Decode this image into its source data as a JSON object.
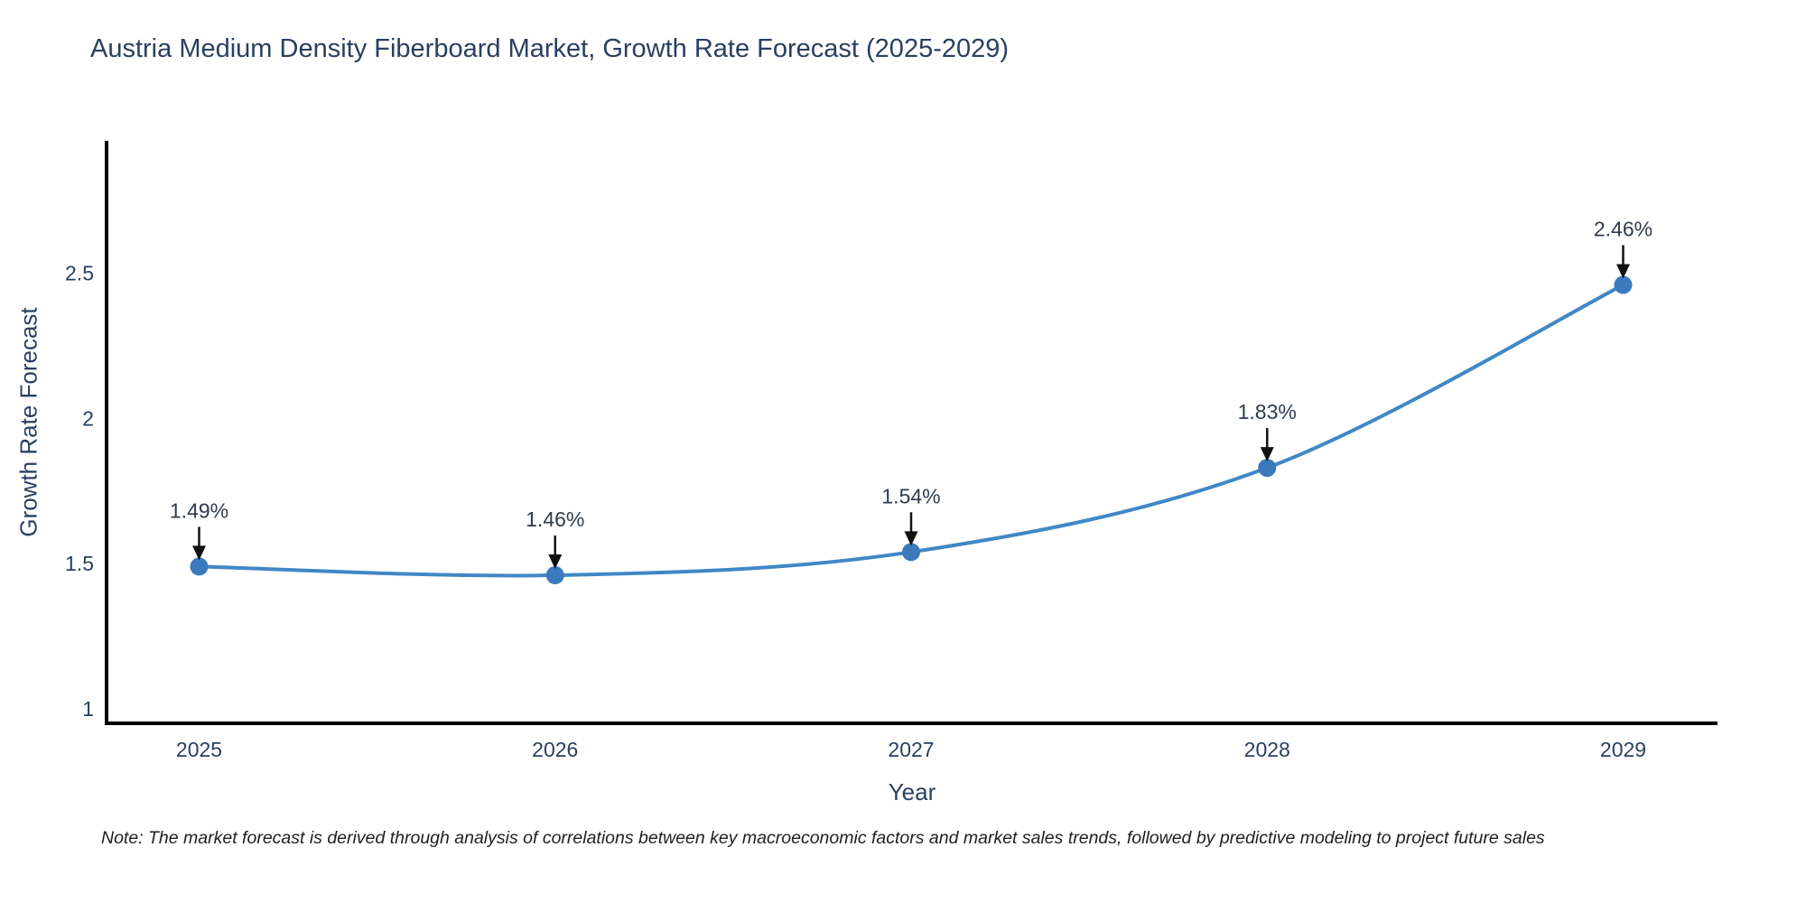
{
  "title": {
    "text": "Austria Medium Density Fiberboard Market, Growth Rate Forecast (2025-2029)"
  },
  "note": {
    "text": "Note: The market forecast is derived through analysis of correlations between key macroeconomic factors and market sales trends, followed by predictive modeling to project future sales"
  },
  "chart_data": {
    "type": "line",
    "title": "Austria Medium Density Fiberboard Market, Growth Rate Forecast (2025-2029)",
    "x": [
      2025,
      2026,
      2027,
      2028,
      2029
    ],
    "x_tick_labels": [
      "2025",
      "2026",
      "2027",
      "2028",
      "2029"
    ],
    "values": [
      1.49,
      1.46,
      1.54,
      1.83,
      2.46
    ],
    "point_labels": [
      "1.49%",
      "1.46%",
      "1.54%",
      "1.83%",
      "2.46%"
    ],
    "xlabel": "Year",
    "ylabel": "Growth Rate Forecast",
    "y_ticks": [
      1,
      1.5,
      2,
      2.5
    ],
    "y_tick_labels": [
      "1",
      "1.5",
      "2",
      "2.5"
    ],
    "xlim": [
      2024.74,
      2029.26
    ],
    "ylim": [
      0.95,
      2.95
    ],
    "grid": false,
    "legend": false,
    "line_shape": "spline",
    "annotations_have_arrows": true,
    "colors": {
      "line": "#4187c6",
      "marker": "#3a7abc",
      "axis": "#000000",
      "tick_label": "#2a3f5f",
      "annotation_text": "#2f3b4c",
      "annotation_arrow": "#111111",
      "title": "#2a3f5f",
      "background": "#ffffff"
    }
  }
}
